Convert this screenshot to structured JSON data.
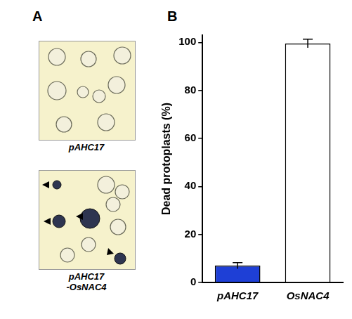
{
  "panel_labels": [
    "A",
    "B"
  ],
  "images": [
    {
      "caption": [
        "pAHC17"
      ]
    },
    {
      "caption": [
        "pAHC17",
        "-OsNAC4"
      ]
    }
  ],
  "chart_data": {
    "type": "bar",
    "y_label": "Dead protoplasts (%)",
    "categories": [
      "pAHC17",
      "OsNAC4"
    ],
    "values": [
      7,
      99.5
    ],
    "errors": [
      1.3,
      1.8
    ],
    "colors": [
      "#1e3fd6",
      "#ffffff"
    ],
    "ylim": [
      0,
      103
    ],
    "yticks": [
      0,
      20,
      40,
      60,
      80,
      100
    ],
    "grid": false
  }
}
